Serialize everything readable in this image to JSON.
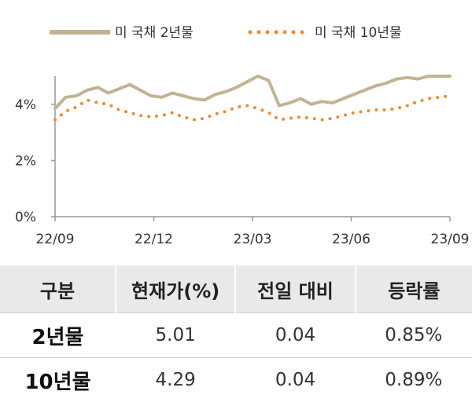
{
  "chart_data": {
    "type": "line",
    "title": "",
    "xlabel": "",
    "ylabel": "",
    "ylim": [
      0,
      5
    ],
    "y_ticks": [
      "0%",
      "2%",
      "4%"
    ],
    "y_tick_values": [
      0,
      2,
      4
    ],
    "x_ticks": [
      "22/09",
      "22/12",
      "23/03",
      "23/06",
      "23/09"
    ],
    "legend_position": "top",
    "series": [
      {
        "name": "미 국채 2년물",
        "style": "solid",
        "color": "#c2b391",
        "values": [
          3.85,
          4.25,
          4.3,
          4.5,
          4.6,
          4.4,
          4.55,
          4.7,
          4.5,
          4.3,
          4.25,
          4.4,
          4.3,
          4.2,
          4.15,
          4.35,
          4.45,
          4.6,
          4.8,
          5.0,
          4.85,
          3.95,
          4.05,
          4.2,
          4.0,
          4.1,
          4.05,
          4.2,
          4.35,
          4.5,
          4.65,
          4.75,
          4.9,
          4.95,
          4.9,
          5.0,
          5.0,
          5.0
        ]
      },
      {
        "name": "미 국채 10년물",
        "style": "dotted",
        "color": "#f08a2a",
        "values": [
          3.45,
          3.75,
          3.9,
          4.15,
          4.05,
          4.0,
          3.8,
          3.7,
          3.6,
          3.55,
          3.6,
          3.7,
          3.55,
          3.45,
          3.5,
          3.65,
          3.75,
          3.9,
          3.95,
          3.85,
          3.7,
          3.45,
          3.5,
          3.55,
          3.5,
          3.45,
          3.5,
          3.6,
          3.7,
          3.75,
          3.8,
          3.8,
          3.85,
          3.95,
          4.1,
          4.2,
          4.25,
          4.3
        ]
      }
    ]
  },
  "table": {
    "headers": [
      "구분",
      "현재가(%)",
      "전일 대비",
      "등락률"
    ],
    "rows": [
      {
        "label": "2년물",
        "price": "5.01",
        "change": "0.04",
        "rate": "0.85%"
      },
      {
        "label": "10년물",
        "price": "4.29",
        "change": "0.04",
        "rate": "0.89%"
      }
    ]
  }
}
